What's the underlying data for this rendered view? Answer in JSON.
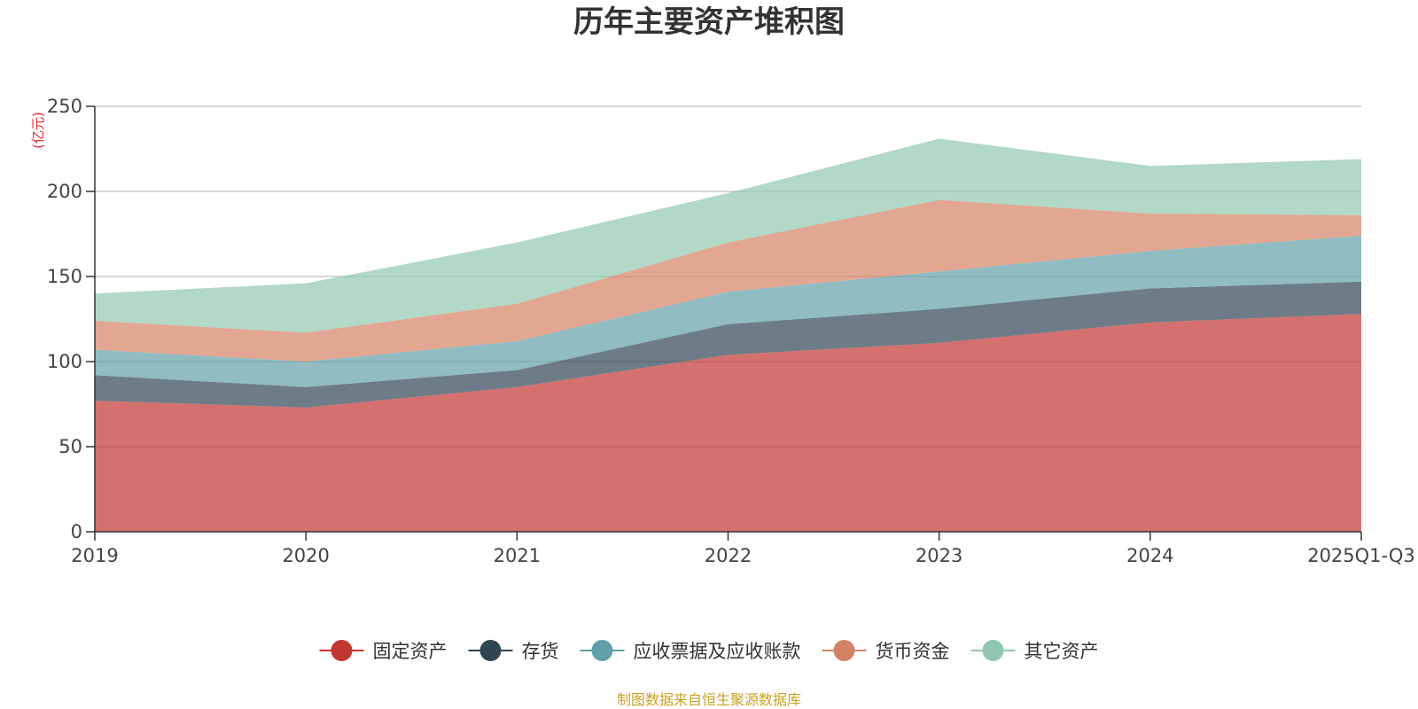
{
  "chart_data": {
    "type": "area",
    "stacked": true,
    "title": "历年主要资产堆积图",
    "y_unit": "(亿元)",
    "categories": [
      "2019",
      "2020",
      "2021",
      "2022",
      "2023",
      "2024",
      "2025Q1-Q3"
    ],
    "ylim": [
      0,
      250
    ],
    "yticks": [
      "0",
      "50",
      "100",
      "150",
      "200",
      "250"
    ],
    "grid": true,
    "legend_position": "bottom-center",
    "series": [
      {
        "name": "固定资产",
        "color": "#c23531",
        "values": [
          77,
          73,
          85,
          104,
          111,
          123,
          128
        ]
      },
      {
        "name": "存货",
        "color": "#2f4554",
        "values": [
          15,
          12,
          10,
          18,
          20,
          20,
          19
        ]
      },
      {
        "name": "应收票据及应收账款",
        "color": "#61a0a8",
        "values": [
          15,
          15,
          17,
          19,
          22,
          22,
          27
        ]
      },
      {
        "name": "货币资金",
        "color": "#d48265",
        "values": [
          17,
          17,
          22,
          29,
          42,
          22,
          12
        ]
      },
      {
        "name": "其它资产",
        "color": "#91c7ae",
        "values": [
          16,
          29,
          36,
          29,
          36,
          28,
          33
        ]
      }
    ]
  },
  "footer": {
    "source": "制图数据来自恒生聚源数据库"
  }
}
